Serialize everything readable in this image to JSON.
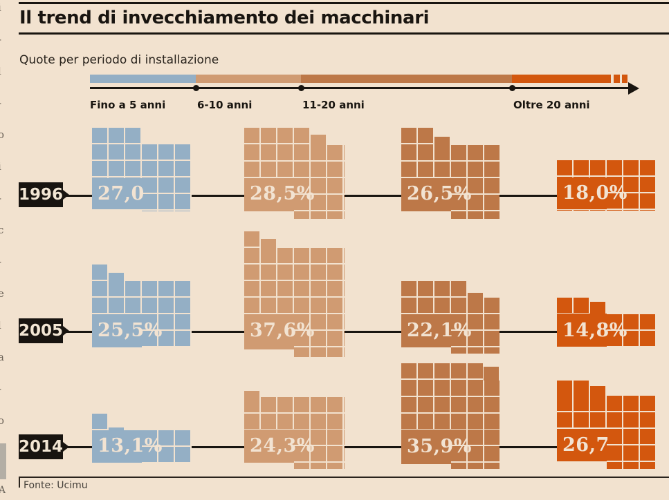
{
  "page": {
    "title": "Il trend di invecchiamento dei macchinari",
    "subtitle": "Quote per periodo di installazione",
    "source": "Fonte: Ucimu"
  },
  "timeline": {
    "labels": [
      "Fino a 5 anni",
      "6-10 anni",
      "11-20 anni",
      "Oltre 20 anni"
    ]
  },
  "chart_data": {
    "type": "waffle",
    "title": "Il trend di invecchiamento dei macchinari",
    "subtitle": "Quote per periodo di installazione",
    "categories": [
      "Fino a 5 anni",
      "6-10 anni",
      "11-20 anni",
      "Oltre 20 anni"
    ],
    "unit": "percent share of installed machinery",
    "rows": [
      {
        "year": "1996",
        "values": [
          27.0,
          28.5,
          26.5,
          18.0
        ],
        "labels": [
          "27,0",
          "28,5%",
          "26,5%",
          "18,0%"
        ]
      },
      {
        "year": "2005",
        "values": [
          25.5,
          37.6,
          22.1,
          14.8
        ],
        "labels": [
          "25,5%",
          "37,6%",
          "22,1%",
          "14,8%"
        ]
      },
      {
        "year": "2014",
        "values": [
          13.1,
          24.3,
          35.9,
          26.7
        ],
        "labels": [
          "13,1%",
          "24,3%",
          "35,9%",
          "26,7"
        ]
      }
    ],
    "colors": {
      "fino_a_5_anni": "#94afc5",
      "anni_6_10": "#d09b72",
      "anni_11_20": "#bd7848",
      "oltre_20_anni": "#d3570e",
      "background": "#f2e2cf",
      "ink": "#191510",
      "value_text": "#f2e3d2"
    },
    "legend_position": "top timeline",
    "source": "Fonte: Ucimu"
  },
  "edge_fragments": [
    "i",
    "-",
    "l",
    "-",
    "o",
    "i",
    "-",
    "c",
    "-",
    "e",
    "l",
    "a",
    "-",
    "o"
  ],
  "edge_letter": "A"
}
